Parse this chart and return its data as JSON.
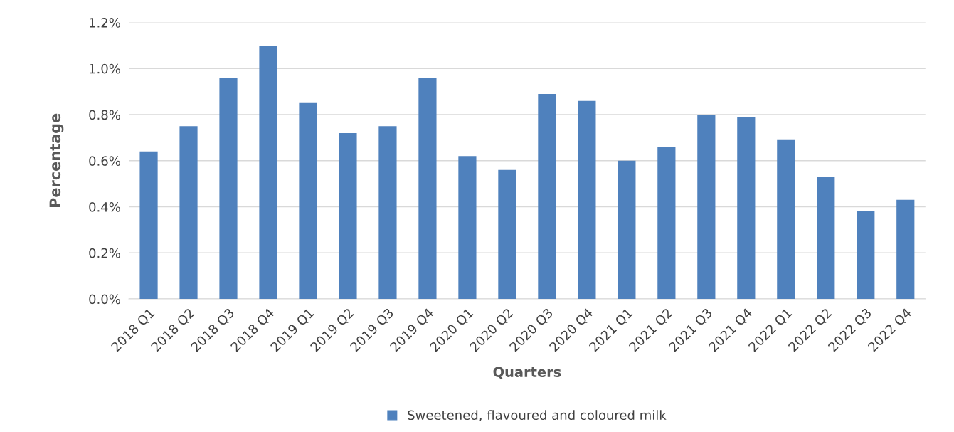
{
  "chart_data": {
    "type": "bar",
    "xlabel": "Quarters",
    "ylabel": "Percentage",
    "categories": [
      "2018 Q1",
      "2018 Q2",
      "2018 Q3",
      "2018 Q4",
      "2019 Q1",
      "2019 Q2",
      "2019 Q3",
      "2019 Q4",
      "2020 Q1",
      "2020 Q2",
      "2020 Q3",
      "2020 Q4",
      "2021 Q1",
      "2021 Q2",
      "2021 Q3",
      "2021 Q4",
      "2022 Q1",
      "2022 Q2",
      "2022 Q3",
      "2022 Q4"
    ],
    "series": [
      {
        "name": "Sweetened, flavoured and coloured milk",
        "color": "#4f81bd",
        "values": [
          0.64,
          0.75,
          0.96,
          1.1,
          0.85,
          0.72,
          0.75,
          0.96,
          0.62,
          0.56,
          0.89,
          0.86,
          0.6,
          0.66,
          0.8,
          0.79,
          0.69,
          0.53,
          0.38,
          0.43
        ]
      }
    ],
    "ylim": [
      0,
      1.2
    ],
    "yticks": [
      {
        "value": 0,
        "label": "0.0%"
      },
      {
        "value": 0.2,
        "label": "0.2%"
      },
      {
        "value": 0.4,
        "label": "0.4%"
      },
      {
        "value": 0.6,
        "label": "0.6%"
      },
      {
        "value": 0.8,
        "label": "0.8%"
      },
      {
        "value": 1.0,
        "label": "1.0%"
      },
      {
        "value": 1.2,
        "label": "1.2%"
      }
    ],
    "grid": "y",
    "legend": "bottom"
  }
}
